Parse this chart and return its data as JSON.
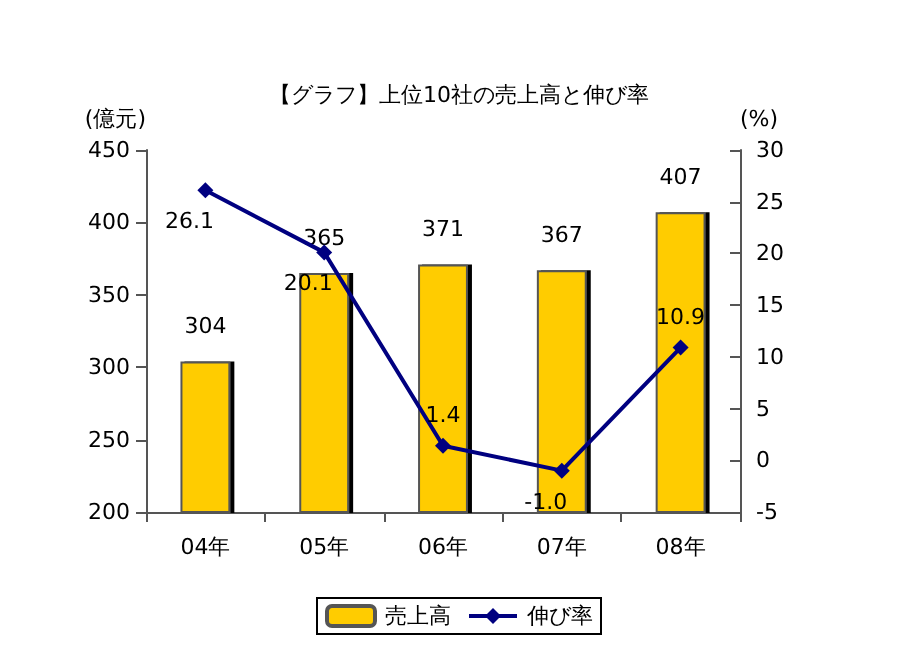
{
  "chart_data": {
    "type": "bar",
    "title": "【グラフ】上位10社の売上高と伸び率",
    "ylabel": "(億元)",
    "y2label": "(%)",
    "categories": [
      "04年",
      "05年",
      "06年",
      "07年",
      "08年"
    ],
    "series": [
      {
        "name": "売上高",
        "color": "#ffcc00",
        "values": [
          304,
          365,
          371,
          367,
          407
        ],
        "value_labels": [
          "304",
          "365",
          "371",
          "367",
          "407"
        ]
      },
      {
        "name": "伸び率",
        "type": "line",
        "axis": "y2",
        "color": "#000080",
        "values": [
          26.1,
          20.1,
          1.4,
          -1.0,
          10.9
        ],
        "value_labels": [
          "26.1",
          "20.1",
          "1.4",
          "-1.0",
          "10.9"
        ]
      }
    ],
    "ylim": [
      200,
      450
    ],
    "yticks": [
      200,
      250,
      300,
      350,
      400,
      450
    ],
    "y2lim": [
      -5,
      30
    ],
    "y2ticks": [
      -5,
      0,
      5,
      10,
      15,
      20,
      25,
      30
    ],
    "grid": false,
    "legend": "bottom",
    "marker": "diamond",
    "line_style": "solid"
  }
}
